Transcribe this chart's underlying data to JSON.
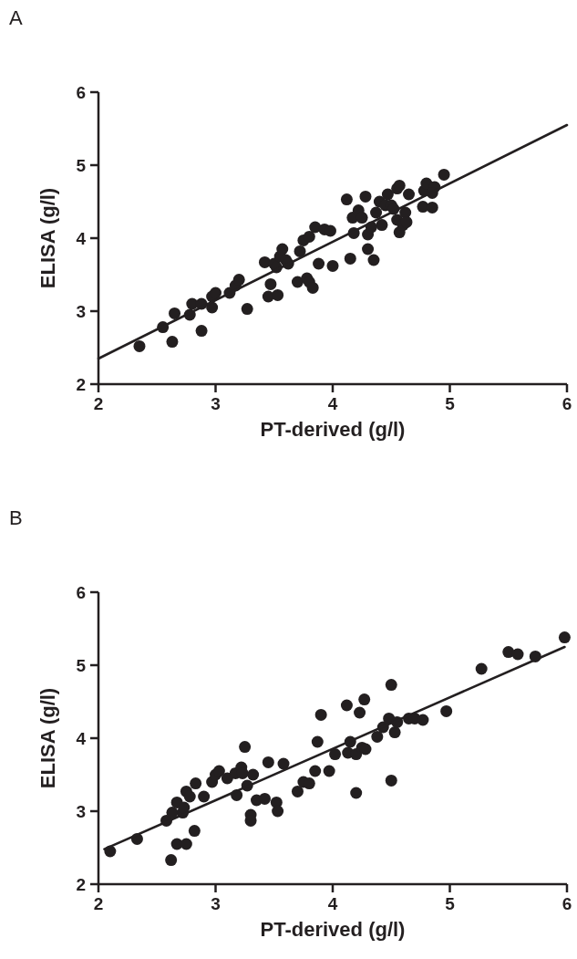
{
  "chart_data": [
    {
      "type": "scatter",
      "title": "A",
      "xlabel": "PT-derived (g/l)",
      "ylabel": "ELISA (g/l)",
      "xlim": [
        2,
        6
      ],
      "ylim": [
        2,
        6
      ],
      "xticks": [
        2,
        3,
        4,
        5,
        6
      ],
      "yticks": [
        2,
        3,
        4,
        5,
        6
      ],
      "grid": false,
      "series": [
        {
          "marker": "circle",
          "color": "#231f20",
          "x": [
            2.35,
            2.55,
            2.63,
            2.65,
            2.78,
            2.8,
            2.88,
            2.88,
            2.97,
            2.97,
            3.0,
            3.12,
            3.17,
            3.2,
            3.27,
            3.42,
            3.45,
            3.47,
            3.5,
            3.52,
            3.53,
            3.55,
            3.57,
            3.6,
            3.62,
            3.7,
            3.72,
            3.75,
            3.78,
            3.8,
            3.8,
            3.83,
            3.85,
            3.88,
            3.93,
            3.98,
            4.0,
            4.12,
            4.15,
            4.17,
            4.18,
            4.22,
            4.25,
            4.28,
            4.3,
            4.3,
            4.33,
            4.35,
            4.37,
            4.4,
            4.42,
            4.45,
            4.47,
            4.5,
            4.52,
            4.55,
            4.55,
            4.57,
            4.57,
            4.6,
            4.62,
            4.63,
            4.65,
            4.77,
            4.78,
            4.8,
            4.85,
            4.87,
            4.95,
            4.85
          ],
          "values": [
            2.52,
            2.78,
            2.58,
            2.97,
            2.95,
            3.1,
            2.73,
            3.1,
            3.05,
            3.2,
            3.25,
            3.25,
            3.35,
            3.43,
            3.03,
            3.67,
            3.2,
            3.37,
            3.65,
            3.6,
            3.22,
            3.75,
            3.85,
            3.7,
            3.65,
            3.4,
            3.82,
            3.97,
            3.45,
            3.4,
            4.02,
            3.32,
            4.15,
            3.65,
            4.12,
            4.1,
            3.62,
            4.53,
            3.72,
            4.28,
            4.07,
            4.38,
            4.28,
            4.57,
            3.85,
            4.05,
            4.15,
            3.7,
            4.35,
            4.5,
            4.18,
            4.45,
            4.6,
            4.45,
            4.4,
            4.68,
            4.25,
            4.72,
            4.08,
            4.18,
            4.35,
            4.22,
            4.6,
            4.43,
            4.65,
            4.75,
            4.42,
            4.7,
            4.87,
            4.62
          ]
        },
        {
          "type": "line",
          "color": "#231f20",
          "x": [
            2,
            6
          ],
          "values": [
            2.35,
            5.55
          ]
        }
      ]
    },
    {
      "type": "scatter",
      "title": "B",
      "xlabel": "PT-derived (g/l)",
      "ylabel": "ELISA (g/l)",
      "xlim": [
        2,
        6
      ],
      "ylim": [
        2,
        6
      ],
      "xticks": [
        2,
        3,
        4,
        5,
        6
      ],
      "yticks": [
        2,
        3,
        4,
        5,
        6
      ],
      "grid": false,
      "series": [
        {
          "marker": "circle",
          "color": "#231f20",
          "x": [
            2.1,
            2.33,
            2.58,
            2.62,
            2.63,
            2.67,
            2.67,
            2.72,
            2.73,
            2.75,
            2.75,
            2.78,
            2.82,
            2.83,
            2.9,
            2.97,
            3.0,
            3.03,
            3.1,
            3.17,
            3.18,
            3.22,
            3.23,
            3.25,
            3.27,
            3.3,
            3.3,
            3.32,
            3.35,
            3.42,
            3.45,
            3.52,
            3.53,
            3.58,
            3.7,
            3.75,
            3.8,
            3.85,
            3.87,
            3.9,
            3.97,
            4.02,
            4.12,
            4.13,
            4.15,
            4.2,
            4.2,
            4.23,
            4.25,
            4.27,
            4.28,
            4.38,
            4.43,
            4.48,
            4.5,
            4.5,
            4.53,
            4.55,
            4.65,
            4.7,
            4.77,
            4.97,
            5.27,
            5.5,
            5.58,
            5.73,
            5.98
          ],
          "values": [
            2.45,
            2.62,
            2.87,
            2.33,
            2.98,
            3.12,
            2.55,
            2.98,
            3.05,
            3.27,
            2.55,
            3.2,
            2.73,
            3.38,
            3.2,
            3.4,
            3.5,
            3.55,
            3.45,
            3.52,
            3.22,
            3.6,
            3.52,
            3.88,
            3.35,
            2.95,
            2.87,
            3.5,
            3.15,
            3.17,
            3.67,
            3.12,
            3.0,
            3.65,
            3.27,
            3.4,
            3.38,
            3.55,
            3.95,
            4.32,
            3.55,
            3.78,
            4.45,
            3.8,
            3.95,
            3.78,
            3.25,
            4.35,
            3.87,
            4.53,
            3.85,
            4.02,
            4.15,
            4.27,
            4.73,
            3.42,
            4.08,
            4.22,
            4.27,
            4.27,
            4.25,
            4.37,
            4.95,
            5.18,
            5.15,
            5.12,
            5.38
          ]
        },
        {
          "type": "line",
          "color": "#231f20",
          "x": [
            2.05,
            5.98
          ],
          "values": [
            2.48,
            5.25
          ]
        }
      ]
    }
  ]
}
